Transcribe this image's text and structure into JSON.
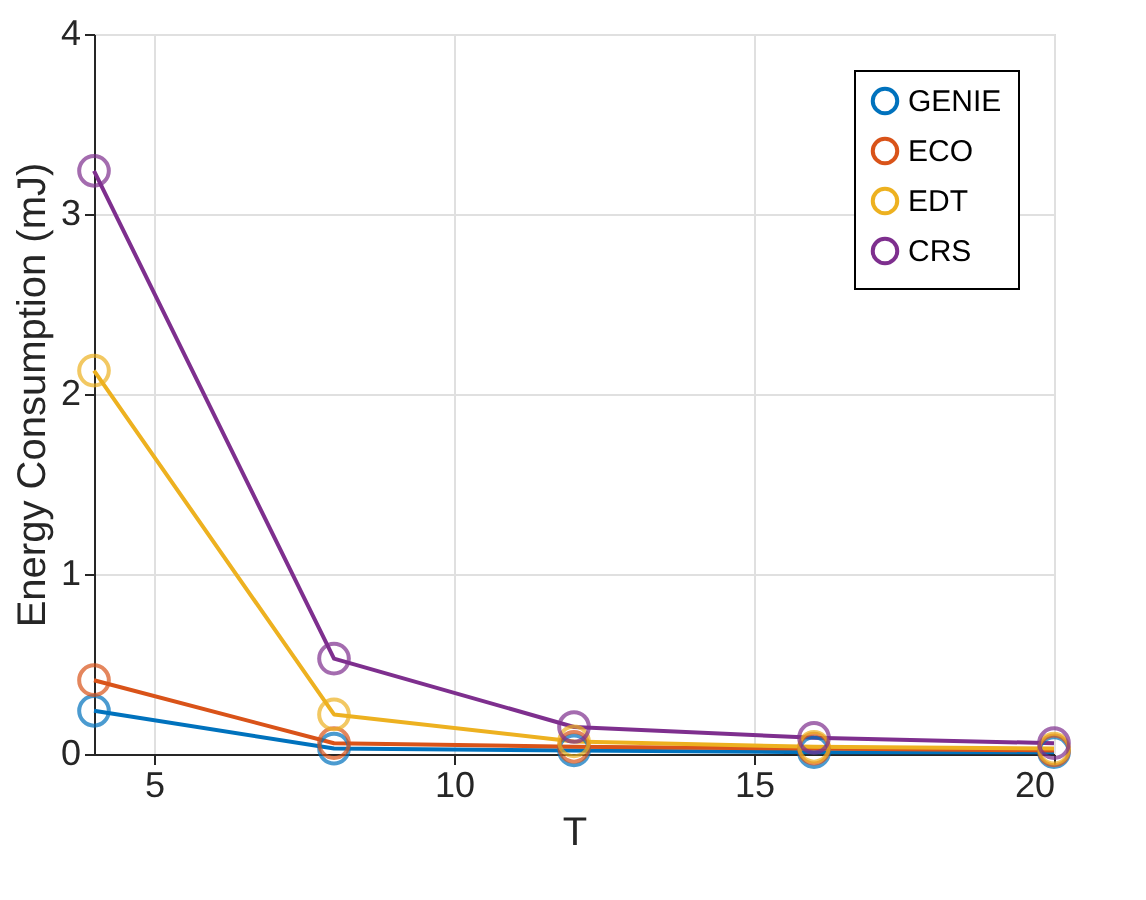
{
  "chart_data": {
    "type": "line",
    "xlabel": "T",
    "ylabel": "Energy Consumption (mJ)",
    "x": [
      4,
      8,
      12,
      16,
      20
    ],
    "series": [
      {
        "name": "GENIE",
        "color": "#0072bd",
        "values": [
          0.24,
          0.03,
          0.02,
          0.01,
          0.01
        ]
      },
      {
        "name": "ECO",
        "color": "#d95319",
        "values": [
          0.41,
          0.06,
          0.04,
          0.03,
          0.02
        ]
      },
      {
        "name": "EDT",
        "color": "#edb120",
        "values": [
          2.13,
          0.22,
          0.07,
          0.04,
          0.03
        ]
      },
      {
        "name": "CRS",
        "color": "#7e2f8e",
        "values": [
          3.24,
          0.53,
          0.15,
          0.09,
          0.06
        ]
      }
    ],
    "xlim": [
      4,
      20
    ],
    "xticks": [
      5,
      10,
      15,
      20
    ],
    "ylim": [
      0,
      4
    ],
    "yticks": [
      0,
      1,
      2,
      3,
      4
    ],
    "grid": true,
    "legend": "top right",
    "marker": "circle",
    "line_style": "solid"
  }
}
